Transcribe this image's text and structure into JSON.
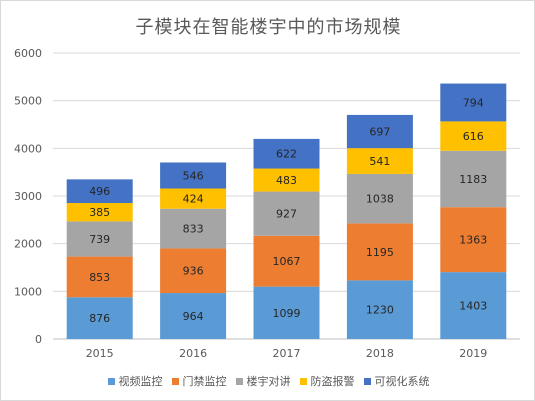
{
  "chart_data": {
    "type": "stacked-bar",
    "title": "子模块在智能楼宇中的市场规模",
    "categories": [
      "2015",
      "2016",
      "2017",
      "2018",
      "2019"
    ],
    "ylim": [
      0,
      6000
    ],
    "yticks": [
      0,
      1000,
      2000,
      3000,
      4000,
      5000,
      6000
    ],
    "grid": true,
    "legend_position": "bottom",
    "series": [
      {
        "name": "视频监控",
        "color": "#5b9bd5",
        "values": [
          876,
          964,
          1099,
          1230,
          1403
        ]
      },
      {
        "name": "门禁监控",
        "color": "#ed7d31",
        "values": [
          853,
          936,
          1067,
          1195,
          1363
        ]
      },
      {
        "name": "楼宇对讲",
        "color": "#a5a5a5",
        "values": [
          739,
          833,
          927,
          1038,
          1183
        ]
      },
      {
        "name": "防盗报警",
        "color": "#ffc000",
        "values": [
          385,
          424,
          483,
          541,
          616
        ]
      },
      {
        "name": "可视化系统",
        "color": "#4472c4",
        "values": [
          496,
          546,
          622,
          697,
          794
        ]
      }
    ]
  }
}
